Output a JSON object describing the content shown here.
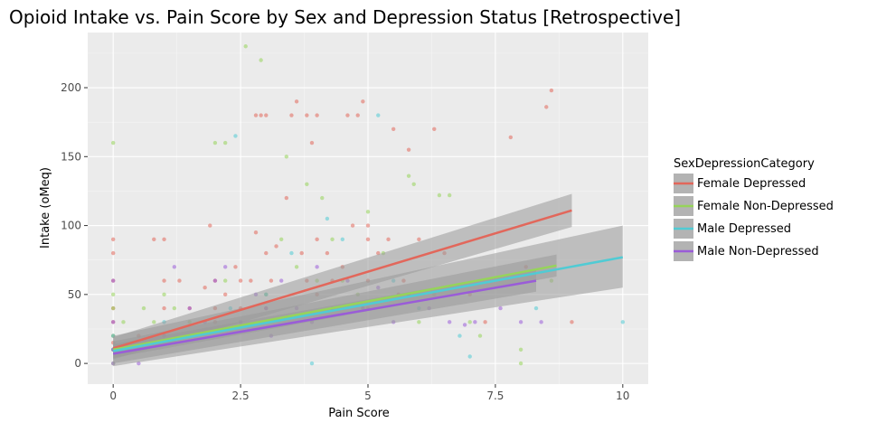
{
  "chart_data": {
    "type": "scatter",
    "title": "Opioid Intake vs. Pain Score by Sex and Depression Status [Retrospective]",
    "xlabel": "Pain Score",
    "ylabel": "Intake (oMeq)",
    "xlim": [
      -0.5,
      10.5
    ],
    "ylim": [
      -15,
      240
    ],
    "x_ticks": [
      0,
      2.5,
      5,
      7.5,
      10
    ],
    "x_tick_labels": [
      "0",
      "2.5",
      "5",
      "7.5",
      "10"
    ],
    "y_ticks": [
      0,
      50,
      100,
      150,
      200
    ],
    "y_tick_labels": [
      "0",
      "50",
      "100",
      "150",
      "200"
    ],
    "grid": true,
    "legend": {
      "title": "SexDepressionCategory",
      "position": "right",
      "entries": [
        "Female Depressed",
        "Female Non-Depressed",
        "Male Depressed",
        "Male Non-Depressed"
      ]
    },
    "colors": {
      "Female Depressed": "#e2675b",
      "Female Non-Depressed": "#96d45a",
      "Male Depressed": "#50cbd4",
      "Male Non-Depressed": "#9a5cd8",
      "panel": "#ebebeb",
      "band": "#999999"
    },
    "series": [
      {
        "name": "Female Depressed",
        "fit": {
          "x": [
            0,
            9
          ],
          "y": [
            11,
            111
          ],
          "se_low": [
            3,
            99
          ],
          "se_high": [
            19,
            123
          ]
        },
        "points": [
          [
            0,
            90
          ],
          [
            0,
            80
          ],
          [
            0,
            60
          ],
          [
            0,
            40
          ],
          [
            0,
            30
          ],
          [
            0,
            20
          ],
          [
            0,
            15
          ],
          [
            0,
            10
          ],
          [
            0.5,
            20
          ],
          [
            0.8,
            90
          ],
          [
            1,
            90
          ],
          [
            1,
            60
          ],
          [
            1,
            40
          ],
          [
            1,
            20
          ],
          [
            1.3,
            60
          ],
          [
            1.5,
            40
          ],
          [
            1.8,
            55
          ],
          [
            1.9,
            100
          ],
          [
            2,
            60
          ],
          [
            2,
            40
          ],
          [
            2,
            30
          ],
          [
            2.2,
            50
          ],
          [
            2.4,
            70
          ],
          [
            2.5,
            60
          ],
          [
            2.5,
            40
          ],
          [
            2.7,
            60
          ],
          [
            2.8,
            180
          ],
          [
            2.8,
            95
          ],
          [
            2.9,
            180
          ],
          [
            3,
            180
          ],
          [
            3,
            80
          ],
          [
            3,
            40
          ],
          [
            3.1,
            60
          ],
          [
            3.2,
            85
          ],
          [
            3.4,
            120
          ],
          [
            3.5,
            180
          ],
          [
            3.6,
            190
          ],
          [
            3.7,
            80
          ],
          [
            3.8,
            180
          ],
          [
            3.8,
            60
          ],
          [
            3.9,
            160
          ],
          [
            4,
            180
          ],
          [
            4,
            90
          ],
          [
            4,
            50
          ],
          [
            4.2,
            80
          ],
          [
            4.3,
            60
          ],
          [
            4.5,
            70
          ],
          [
            4.6,
            180
          ],
          [
            4.7,
            100
          ],
          [
            4.8,
            180
          ],
          [
            4.9,
            190
          ],
          [
            5,
            100
          ],
          [
            5,
            90
          ],
          [
            5,
            60
          ],
          [
            5,
            40
          ],
          [
            5.2,
            80
          ],
          [
            5.4,
            90
          ],
          [
            5.5,
            170
          ],
          [
            5.6,
            50
          ],
          [
            5.7,
            60
          ],
          [
            5.8,
            155
          ],
          [
            6,
            90
          ],
          [
            6.3,
            170
          ],
          [
            6.5,
            80
          ],
          [
            7,
            50
          ],
          [
            7.3,
            30
          ],
          [
            7.8,
            164
          ],
          [
            8.1,
            70
          ],
          [
            8.5,
            186
          ],
          [
            8.6,
            198
          ],
          [
            9,
            30
          ]
        ]
      },
      {
        "name": "Female Non-Depressed",
        "fit": {
          "x": [
            0,
            8.7
          ],
          "y": [
            10,
            71
          ],
          "se_low": [
            4,
            63
          ],
          "se_high": [
            16,
            79
          ]
        },
        "points": [
          [
            0,
            160
          ],
          [
            0,
            50
          ],
          [
            0,
            40
          ],
          [
            0,
            20
          ],
          [
            0,
            10
          ],
          [
            0,
            0
          ],
          [
            0.2,
            30
          ],
          [
            0.6,
            40
          ],
          [
            0.8,
            30
          ],
          [
            1,
            50
          ],
          [
            1.2,
            40
          ],
          [
            1.5,
            30
          ],
          [
            2,
            160
          ],
          [
            2.2,
            160
          ],
          [
            2.2,
            60
          ],
          [
            2.6,
            230
          ],
          [
            2.9,
            220
          ],
          [
            3,
            50
          ],
          [
            3.3,
            90
          ],
          [
            3.4,
            150
          ],
          [
            3.6,
            70
          ],
          [
            3.8,
            130
          ],
          [
            4,
            60
          ],
          [
            4.1,
            120
          ],
          [
            4.3,
            90
          ],
          [
            4.5,
            60
          ],
          [
            4.8,
            50
          ],
          [
            5,
            110
          ],
          [
            5.3,
            80
          ],
          [
            5.8,
            136
          ],
          [
            5.9,
            130
          ],
          [
            6,
            30
          ],
          [
            6.3,
            50
          ],
          [
            6.4,
            122
          ],
          [
            6.6,
            122
          ],
          [
            7,
            30
          ],
          [
            7.2,
            20
          ],
          [
            8,
            10
          ],
          [
            8,
            0
          ],
          [
            8.6,
            60
          ]
        ]
      },
      {
        "name": "Male Depressed",
        "fit": {
          "x": [
            0,
            10
          ],
          "y": [
            9,
            77
          ],
          "se_low": [
            -2,
            55
          ],
          "se_high": [
            20,
            100
          ]
        },
        "points": [
          [
            0,
            20
          ],
          [
            0,
            10
          ],
          [
            1,
            30
          ],
          [
            2.3,
            40
          ],
          [
            2.4,
            165
          ],
          [
            3,
            50
          ],
          [
            3.5,
            80
          ],
          [
            3.9,
            0
          ],
          [
            4.2,
            105
          ],
          [
            4.5,
            90
          ],
          [
            4.9,
            40
          ],
          [
            5.2,
            180
          ],
          [
            5.5,
            60
          ],
          [
            6,
            40
          ],
          [
            6.8,
            20
          ],
          [
            7,
            5
          ],
          [
            8.3,
            40
          ],
          [
            10,
            30
          ]
        ]
      },
      {
        "name": "Male Non-Depressed",
        "fit": {
          "x": [
            0,
            8.3
          ],
          "y": [
            7,
            60
          ],
          "se_low": [
            0,
            52
          ],
          "se_high": [
            14,
            68
          ]
        },
        "points": [
          [
            0,
            60
          ],
          [
            0,
            30
          ],
          [
            0,
            10
          ],
          [
            0,
            0
          ],
          [
            0.3,
            10
          ],
          [
            0.5,
            0
          ],
          [
            1,
            20
          ],
          [
            1.2,
            70
          ],
          [
            1.5,
            40
          ],
          [
            1.8,
            30
          ],
          [
            2,
            60
          ],
          [
            2.2,
            70
          ],
          [
            2.5,
            30
          ],
          [
            2.8,
            50
          ],
          [
            3,
            40
          ],
          [
            3.1,
            20
          ],
          [
            3.3,
            60
          ],
          [
            3.6,
            40
          ],
          [
            3.9,
            30
          ],
          [
            4,
            70
          ],
          [
            4.3,
            40
          ],
          [
            4.6,
            60
          ],
          [
            4.9,
            40
          ],
          [
            5.2,
            55
          ],
          [
            5.5,
            30
          ],
          [
            5.8,
            50
          ],
          [
            6.2,
            40
          ],
          [
            6.6,
            30
          ],
          [
            6.9,
            28
          ],
          [
            7.1,
            30
          ],
          [
            7.6,
            40
          ],
          [
            8,
            30
          ],
          [
            8.4,
            30
          ]
        ]
      }
    ]
  }
}
